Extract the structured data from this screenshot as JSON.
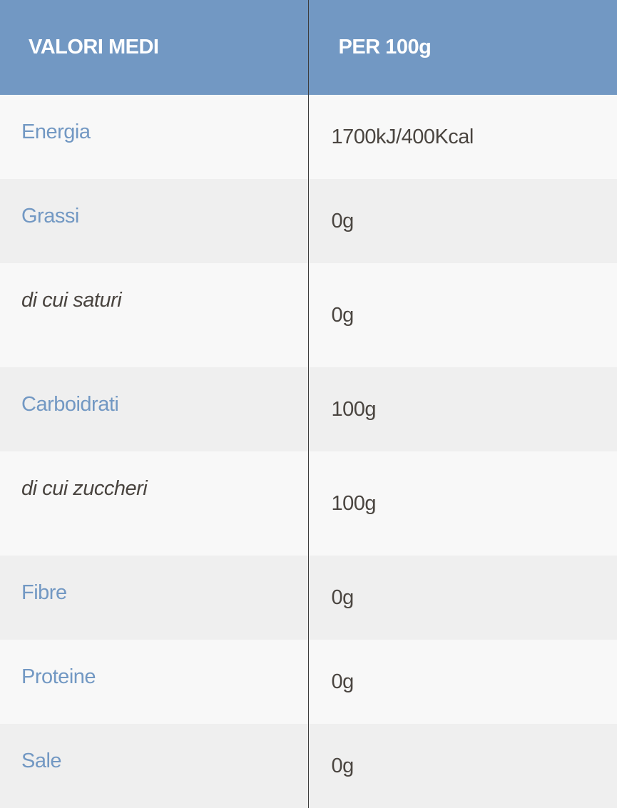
{
  "header": {
    "col1": "VALORI MEDI",
    "col2": "PER 100g"
  },
  "rows": [
    {
      "label": "Energia",
      "value": "1700kJ/400Kcal"
    },
    {
      "label": "Grassi",
      "value": "0g"
    },
    {
      "label": "di cui saturi",
      "value": "0g"
    },
    {
      "label": "Carboidrati",
      "value": "100g"
    },
    {
      "label": "di cui zuccheri",
      "value": "100g"
    },
    {
      "label": "Fibre",
      "value": "0g"
    },
    {
      "label": "Proteine",
      "value": "0g"
    },
    {
      "label": "Sale",
      "value": "0g"
    }
  ],
  "colors": {
    "header_bg": "#7298c3",
    "label": "#7298c3",
    "value": "#4a4540",
    "row_light": "#f8f8f8",
    "row_dark": "#efefef"
  }
}
